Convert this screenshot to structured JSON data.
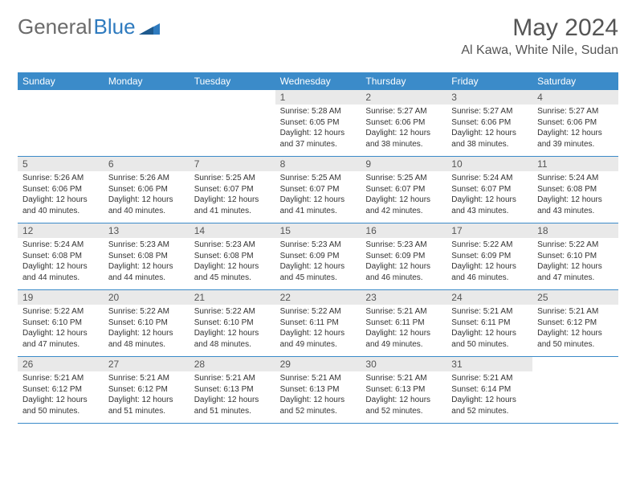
{
  "brand": {
    "part1": "General",
    "part2": "Blue"
  },
  "title": "May 2024",
  "location": "Al Kawa, White Nile, Sudan",
  "colors": {
    "header_bg": "#3b8bc9",
    "daynum_bg": "#e9e9e9",
    "brand_gray": "#6b6b6b",
    "brand_blue": "#2f7bbf"
  },
  "weekdays": [
    "Sunday",
    "Monday",
    "Tuesday",
    "Wednesday",
    "Thursday",
    "Friday",
    "Saturday"
  ],
  "weeks": [
    [
      {
        "empty": true
      },
      {
        "empty": true
      },
      {
        "empty": true
      },
      {
        "num": "1",
        "sunrise": "Sunrise: 5:28 AM",
        "sunset": "Sunset: 6:05 PM",
        "daylight": "Daylight: 12 hours and 37 minutes."
      },
      {
        "num": "2",
        "sunrise": "Sunrise: 5:27 AM",
        "sunset": "Sunset: 6:06 PM",
        "daylight": "Daylight: 12 hours and 38 minutes."
      },
      {
        "num": "3",
        "sunrise": "Sunrise: 5:27 AM",
        "sunset": "Sunset: 6:06 PM",
        "daylight": "Daylight: 12 hours and 38 minutes."
      },
      {
        "num": "4",
        "sunrise": "Sunrise: 5:27 AM",
        "sunset": "Sunset: 6:06 PM",
        "daylight": "Daylight: 12 hours and 39 minutes."
      }
    ],
    [
      {
        "num": "5",
        "sunrise": "Sunrise: 5:26 AM",
        "sunset": "Sunset: 6:06 PM",
        "daylight": "Daylight: 12 hours and 40 minutes."
      },
      {
        "num": "6",
        "sunrise": "Sunrise: 5:26 AM",
        "sunset": "Sunset: 6:06 PM",
        "daylight": "Daylight: 12 hours and 40 minutes."
      },
      {
        "num": "7",
        "sunrise": "Sunrise: 5:25 AM",
        "sunset": "Sunset: 6:07 PM",
        "daylight": "Daylight: 12 hours and 41 minutes."
      },
      {
        "num": "8",
        "sunrise": "Sunrise: 5:25 AM",
        "sunset": "Sunset: 6:07 PM",
        "daylight": "Daylight: 12 hours and 41 minutes."
      },
      {
        "num": "9",
        "sunrise": "Sunrise: 5:25 AM",
        "sunset": "Sunset: 6:07 PM",
        "daylight": "Daylight: 12 hours and 42 minutes."
      },
      {
        "num": "10",
        "sunrise": "Sunrise: 5:24 AM",
        "sunset": "Sunset: 6:07 PM",
        "daylight": "Daylight: 12 hours and 43 minutes."
      },
      {
        "num": "11",
        "sunrise": "Sunrise: 5:24 AM",
        "sunset": "Sunset: 6:08 PM",
        "daylight": "Daylight: 12 hours and 43 minutes."
      }
    ],
    [
      {
        "num": "12",
        "sunrise": "Sunrise: 5:24 AM",
        "sunset": "Sunset: 6:08 PM",
        "daylight": "Daylight: 12 hours and 44 minutes."
      },
      {
        "num": "13",
        "sunrise": "Sunrise: 5:23 AM",
        "sunset": "Sunset: 6:08 PM",
        "daylight": "Daylight: 12 hours and 44 minutes."
      },
      {
        "num": "14",
        "sunrise": "Sunrise: 5:23 AM",
        "sunset": "Sunset: 6:08 PM",
        "daylight": "Daylight: 12 hours and 45 minutes."
      },
      {
        "num": "15",
        "sunrise": "Sunrise: 5:23 AM",
        "sunset": "Sunset: 6:09 PM",
        "daylight": "Daylight: 12 hours and 45 minutes."
      },
      {
        "num": "16",
        "sunrise": "Sunrise: 5:23 AM",
        "sunset": "Sunset: 6:09 PM",
        "daylight": "Daylight: 12 hours and 46 minutes."
      },
      {
        "num": "17",
        "sunrise": "Sunrise: 5:22 AM",
        "sunset": "Sunset: 6:09 PM",
        "daylight": "Daylight: 12 hours and 46 minutes."
      },
      {
        "num": "18",
        "sunrise": "Sunrise: 5:22 AM",
        "sunset": "Sunset: 6:10 PM",
        "daylight": "Daylight: 12 hours and 47 minutes."
      }
    ],
    [
      {
        "num": "19",
        "sunrise": "Sunrise: 5:22 AM",
        "sunset": "Sunset: 6:10 PM",
        "daylight": "Daylight: 12 hours and 47 minutes."
      },
      {
        "num": "20",
        "sunrise": "Sunrise: 5:22 AM",
        "sunset": "Sunset: 6:10 PM",
        "daylight": "Daylight: 12 hours and 48 minutes."
      },
      {
        "num": "21",
        "sunrise": "Sunrise: 5:22 AM",
        "sunset": "Sunset: 6:10 PM",
        "daylight": "Daylight: 12 hours and 48 minutes."
      },
      {
        "num": "22",
        "sunrise": "Sunrise: 5:22 AM",
        "sunset": "Sunset: 6:11 PM",
        "daylight": "Daylight: 12 hours and 49 minutes."
      },
      {
        "num": "23",
        "sunrise": "Sunrise: 5:21 AM",
        "sunset": "Sunset: 6:11 PM",
        "daylight": "Daylight: 12 hours and 49 minutes."
      },
      {
        "num": "24",
        "sunrise": "Sunrise: 5:21 AM",
        "sunset": "Sunset: 6:11 PM",
        "daylight": "Daylight: 12 hours and 50 minutes."
      },
      {
        "num": "25",
        "sunrise": "Sunrise: 5:21 AM",
        "sunset": "Sunset: 6:12 PM",
        "daylight": "Daylight: 12 hours and 50 minutes."
      }
    ],
    [
      {
        "num": "26",
        "sunrise": "Sunrise: 5:21 AM",
        "sunset": "Sunset: 6:12 PM",
        "daylight": "Daylight: 12 hours and 50 minutes."
      },
      {
        "num": "27",
        "sunrise": "Sunrise: 5:21 AM",
        "sunset": "Sunset: 6:12 PM",
        "daylight": "Daylight: 12 hours and 51 minutes."
      },
      {
        "num": "28",
        "sunrise": "Sunrise: 5:21 AM",
        "sunset": "Sunset: 6:13 PM",
        "daylight": "Daylight: 12 hours and 51 minutes."
      },
      {
        "num": "29",
        "sunrise": "Sunrise: 5:21 AM",
        "sunset": "Sunset: 6:13 PM",
        "daylight": "Daylight: 12 hours and 52 minutes."
      },
      {
        "num": "30",
        "sunrise": "Sunrise: 5:21 AM",
        "sunset": "Sunset: 6:13 PM",
        "daylight": "Daylight: 12 hours and 52 minutes."
      },
      {
        "num": "31",
        "sunrise": "Sunrise: 5:21 AM",
        "sunset": "Sunset: 6:14 PM",
        "daylight": "Daylight: 12 hours and 52 minutes."
      },
      {
        "empty": true
      }
    ]
  ]
}
